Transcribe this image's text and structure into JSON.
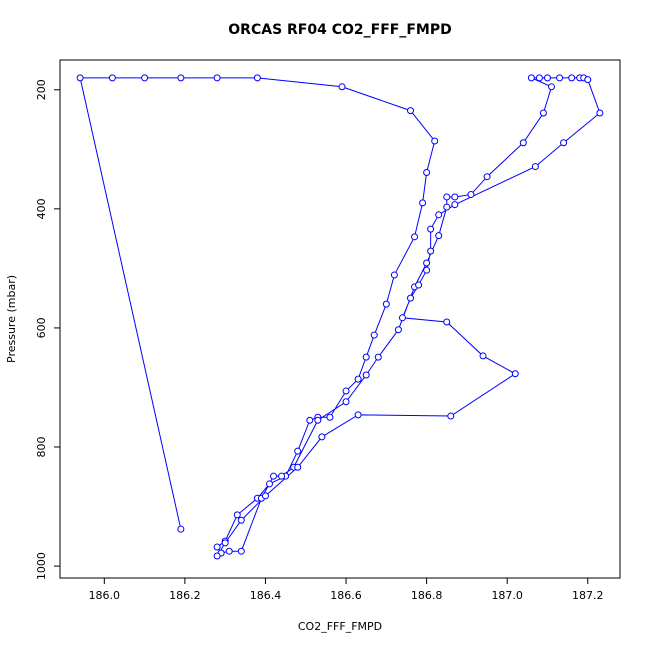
{
  "chart_data": {
    "type": "line",
    "title": "ORCAS RF04 CO2_FFF_FMPD",
    "xlabel": "CO2_FFF_FMPD",
    "ylabel": "Pressure (mbar)",
    "x": [
      186.19,
      185.94,
      186.02,
      186.1,
      186.19,
      186.28,
      186.38,
      186.59,
      186.76,
      186.82,
      186.8,
      186.79,
      186.77,
      186.72,
      186.7,
      186.67,
      186.65,
      186.63,
      186.6,
      186.56,
      186.53,
      186.51,
      186.48,
      186.45,
      186.41,
      186.38,
      186.33,
      186.3,
      186.28,
      186.29,
      186.31,
      186.34,
      186.39,
      186.42,
      186.44,
      186.47,
      186.53,
      186.6,
      186.65,
      186.68,
      186.73,
      186.77,
      186.8,
      186.83,
      186.85,
      186.85,
      186.87,
      186.91,
      186.95,
      187.04,
      187.09,
      187.11,
      187.06,
      187.08,
      187.1,
      187.13,
      187.16,
      187.18,
      187.19,
      187.2,
      187.23,
      187.14,
      187.07,
      186.87,
      186.83,
      186.81,
      186.81,
      186.8,
      186.78,
      186.76,
      186.74,
      186.85,
      186.94,
      187.02,
      186.86,
      186.63,
      186.54,
      186.48,
      186.4,
      186.34,
      186.3,
      186.28
    ],
    "series": [
      {
        "name": "CO2_FFF_FMPD",
        "color": "#0000ff",
        "values": [
          938,
          180,
          180,
          180,
          180,
          180,
          180,
          195,
          235,
          286,
          339,
          390,
          447,
          511,
          560,
          612,
          649,
          686,
          706,
          750,
          750,
          755,
          807,
          849,
          862,
          886,
          914,
          958,
          968,
          978,
          975,
          975,
          886,
          849,
          849,
          834,
          755,
          724,
          679,
          649,
          603,
          531,
          491,
          445,
          397,
          380,
          380,
          376,
          346,
          289,
          239,
          195,
          180,
          180,
          180,
          180,
          180,
          180,
          180,
          183,
          239,
          289,
          329,
          393,
          410,
          434,
          471,
          503,
          528,
          550,
          583,
          590,
          647,
          677,
          748,
          746,
          783,
          834,
          882,
          923,
          961,
          983
        ]
      }
    ],
    "xlim": [
      185.89,
      187.28
    ],
    "ylim": [
      1020,
      150
    ],
    "xticks": [
      {
        "value": 186.0,
        "label": "186.0"
      },
      {
        "value": 186.2,
        "label": "186.2"
      },
      {
        "value": 186.4,
        "label": "186.4"
      },
      {
        "value": 186.6,
        "label": "186.6"
      },
      {
        "value": 186.8,
        "label": "186.8"
      },
      {
        "value": 187.0,
        "label": "187.0"
      },
      {
        "value": 187.2,
        "label": "187.2"
      }
    ],
    "yticks": [
      200,
      400,
      600,
      800,
      1000
    ],
    "grid": false
  }
}
